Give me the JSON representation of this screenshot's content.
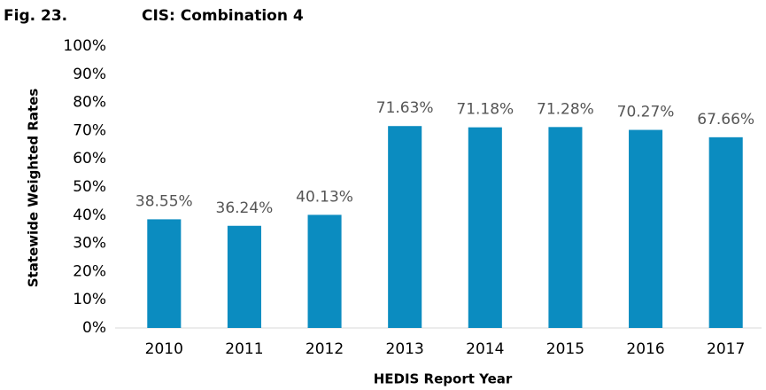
{
  "chart_data": {
    "type": "bar",
    "figure_label": "Fig. 23.",
    "title": "CIS: Combination 4",
    "x_label": "HEDIS Report Year",
    "y_label": "Statewide Weighted Rates",
    "categories": [
      "2010",
      "2011",
      "2012",
      "2013",
      "2014",
      "2015",
      "2016",
      "2017"
    ],
    "values": [
      38.55,
      36.24,
      40.13,
      71.63,
      71.18,
      71.28,
      70.27,
      67.66
    ],
    "value_labels": [
      "38.55%",
      "36.24%",
      "40.13%",
      "71.63%",
      "71.18%",
      "71.28%",
      "70.27%",
      "67.66%"
    ],
    "color": "#0b8cc0",
    "ylim": [
      0,
      100
    ],
    "yticks": [
      {
        "value": 0,
        "label": "0%"
      },
      {
        "value": 10,
        "label": "10%"
      },
      {
        "value": 20,
        "label": "20%"
      },
      {
        "value": 30,
        "label": "30%"
      },
      {
        "value": 40,
        "label": "40%"
      },
      {
        "value": 50,
        "label": "50%"
      },
      {
        "value": 60,
        "label": "60%"
      },
      {
        "value": 70,
        "label": "70%"
      },
      {
        "value": 80,
        "label": "80%"
      },
      {
        "value": 90,
        "label": "90%"
      },
      {
        "value": 100,
        "label": "100%"
      }
    ],
    "grid": false
  }
}
